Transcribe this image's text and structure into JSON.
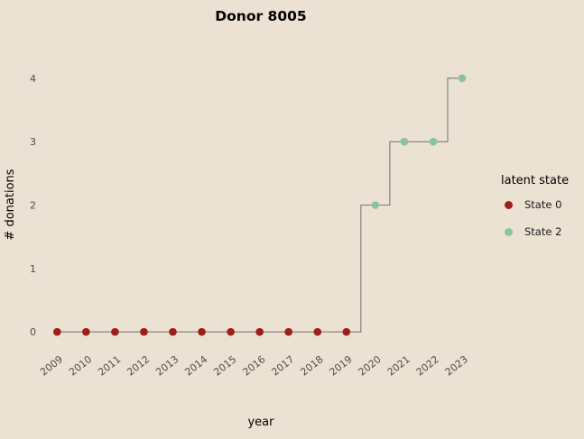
{
  "title": "Donor 8005",
  "axes": {
    "xlabel": "year",
    "ylabel": "# donations"
  },
  "legend": {
    "title": "latent state",
    "items": [
      {
        "label": "State 0",
        "color": "#9e1e19"
      },
      {
        "label": "State 2",
        "color": "#8cc29d"
      }
    ]
  },
  "colors": {
    "background": "#ece2d3",
    "line": "#7d7b75",
    "tick_text": "#4d4d4d",
    "title_text": "#000000"
  },
  "chart_data": {
    "type": "line",
    "step": "mid",
    "title": "Donor 8005",
    "xlabel": "year",
    "ylabel": "# donations",
    "categories": [
      "2009",
      "2010",
      "2011",
      "2012",
      "2013",
      "2014",
      "2015",
      "2016",
      "2017",
      "2018",
      "2019",
      "2020",
      "2021",
      "2022",
      "2023"
    ],
    "series": [
      {
        "name": "# donations",
        "values": [
          0,
          0,
          0,
          0,
          0,
          0,
          0,
          0,
          0,
          0,
          0,
          2,
          3,
          3,
          4
        ]
      }
    ],
    "point_states": [
      "State 0",
      "State 0",
      "State 0",
      "State 0",
      "State 0",
      "State 0",
      "State 0",
      "State 0",
      "State 0",
      "State 0",
      "State 0",
      "State 2",
      "State 2",
      "State 2",
      "State 2"
    ],
    "state_colors": {
      "State 0": "#9e1e19",
      "State 2": "#8cc29d"
    },
    "ylim": [
      0,
      4
    ],
    "yticks": [
      0,
      1,
      2,
      3,
      4
    ],
    "grid": false,
    "legend_position": "right",
    "x_tick_rotation": -38
  }
}
